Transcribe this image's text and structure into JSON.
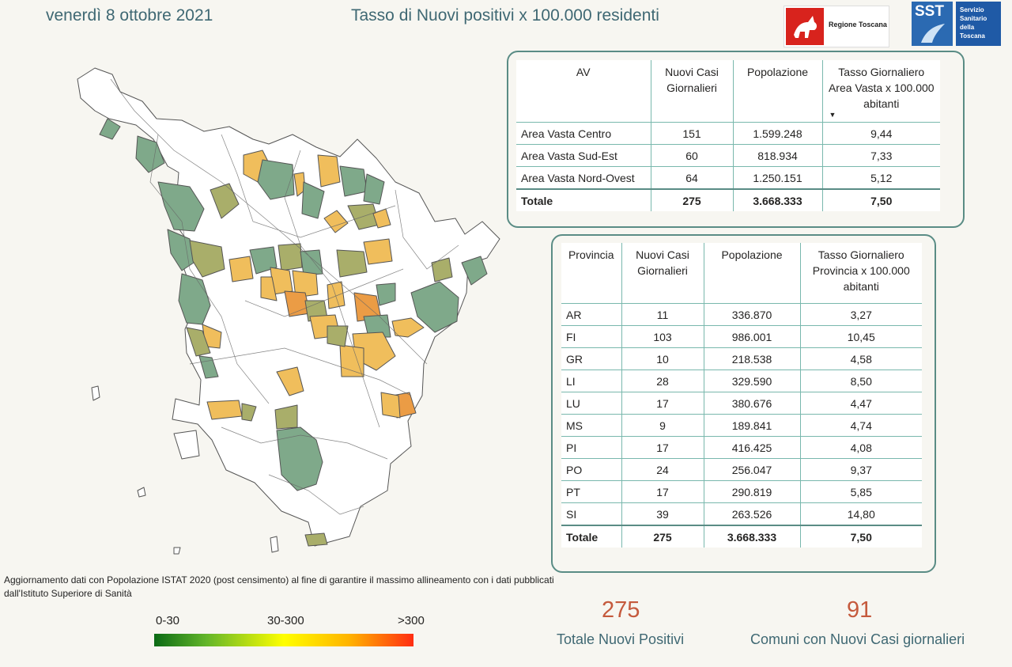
{
  "header": {
    "date": "venerdì 8 ottobre 2021",
    "title": "Tasso di Nuovi positivi x 100.000 residenti",
    "logo_regione": "Regione Toscana",
    "logo_sst": "SST",
    "logo_sst_text": "Servizio Sanitario della Toscana"
  },
  "av_table": {
    "headers": [
      "AV",
      "Nuovi Casi Giornalieri",
      "Popolazione",
      "Tasso Giornaliero Area Vasta x 100.000 abitanti"
    ],
    "rows": [
      [
        "Area Vasta Centro",
        "151",
        "1.599.248",
        "9,44"
      ],
      [
        "Area Vasta Sud-Est",
        "60",
        "818.934",
        "7,33"
      ],
      [
        "Area Vasta Nord-Ovest",
        "64",
        "1.250.151",
        "5,12"
      ]
    ],
    "total": [
      "Totale",
      "275",
      "3.668.333",
      "7,50"
    ]
  },
  "prov_table": {
    "headers": [
      "Provincia",
      "Nuovi Casi Giornalieri",
      "Popolazione",
      "Tasso Giornaliero Provincia x 100.000 abitanti"
    ],
    "rows": [
      [
        "AR",
        "11",
        "336.870",
        "3,27"
      ],
      [
        "FI",
        "103",
        "986.001",
        "10,45"
      ],
      [
        "GR",
        "10",
        "218.538",
        "4,58"
      ],
      [
        "LI",
        "28",
        "329.590",
        "8,50"
      ],
      [
        "LU",
        "17",
        "380.676",
        "4,47"
      ],
      [
        "MS",
        "9",
        "189.841",
        "4,74"
      ],
      [
        "PI",
        "17",
        "416.425",
        "4,08"
      ],
      [
        "PO",
        "24",
        "256.047",
        "9,37"
      ],
      [
        "PT",
        "17",
        "290.819",
        "5,85"
      ],
      [
        "SI",
        "39",
        "263.526",
        "14,80"
      ]
    ],
    "total": [
      "Totale",
      "275",
      "3.668.333",
      "7,50"
    ]
  },
  "note": "Aggiornamento dati con Popolazione ISTAT 2020 (post censimento) al fine di garantire il massimo allineamento con i dati pubblicati dall'Istituto Superiore di Sanità",
  "legend": {
    "low": "0-30",
    "mid": "30-300",
    "high": ">300",
    "colors": [
      "#0b6a15",
      "#ffff00",
      "#ff2d12"
    ]
  },
  "kpis": {
    "total_value": "275",
    "total_label": "Totale Nuovi Positivi",
    "comuni_value": "91",
    "comuni_label": "Comuni con Nuovi Casi giornalieri"
  },
  "map": {
    "palette": {
      "green": "#7fa98a",
      "olive": "#a9ae6a",
      "yellow": "#f0be5c",
      "orange": "#eb9c45",
      "white": "#ffffff"
    }
  }
}
